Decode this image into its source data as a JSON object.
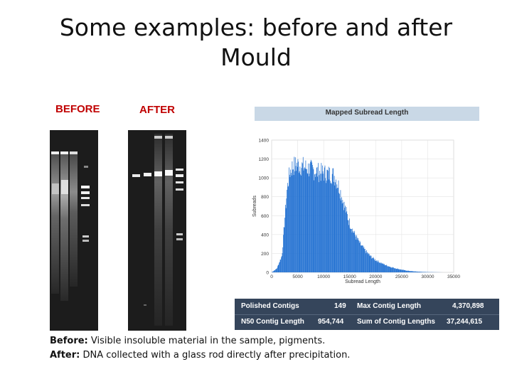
{
  "title_line1": "Some examples: before and after",
  "title_line2": "Mould",
  "labels": {
    "before": "BEFORE",
    "after": "AFTER"
  },
  "colors": {
    "label_red": "#c00000",
    "bar_blue": "#1f6fd1",
    "table_bg": "#35455b",
    "header_bg": "#c9d8e6"
  },
  "chart_data": {
    "type": "bar",
    "title": "Mapped Subread Length",
    "xlabel": "Subread Length",
    "ylabel": "Subreads",
    "xlim": [
      0,
      35000
    ],
    "ylim": [
      0,
      1400
    ],
    "xticks": [
      "0",
      "5000",
      "10000",
      "15000",
      "20000",
      "25000",
      "30000",
      "35000"
    ],
    "yticks": [
      "0",
      "200",
      "400",
      "600",
      "800",
      "1000",
      "1200",
      "1400"
    ],
    "bin_width": 100,
    "profile": [
      [
        0,
        0
      ],
      [
        1000,
        40
      ],
      [
        2000,
        180
      ],
      [
        2500,
        550
      ],
      [
        3000,
        900
      ],
      [
        3500,
        1060
      ],
      [
        4000,
        1120
      ],
      [
        5000,
        1140
      ],
      [
        6000,
        1120
      ],
      [
        7000,
        1100
      ],
      [
        8000,
        1080
      ],
      [
        9000,
        1060
      ],
      [
        10000,
        1050
      ],
      [
        11000,
        1040
      ],
      [
        12000,
        1030
      ],
      [
        13000,
        900
      ],
      [
        14000,
        700
      ],
      [
        15000,
        520
      ],
      [
        16000,
        400
      ],
      [
        17000,
        300
      ],
      [
        18000,
        230
      ],
      [
        19000,
        170
      ],
      [
        20000,
        130
      ],
      [
        21000,
        100
      ],
      [
        22000,
        75
      ],
      [
        23000,
        55
      ],
      [
        24000,
        40
      ],
      [
        25000,
        28
      ],
      [
        26000,
        18
      ],
      [
        27000,
        12
      ],
      [
        28000,
        8
      ],
      [
        29000,
        5
      ],
      [
        30000,
        3
      ],
      [
        31000,
        2
      ],
      [
        32000,
        1
      ],
      [
        33000,
        0
      ],
      [
        35000,
        0
      ]
    ]
  },
  "stats": {
    "row1": {
      "label1": "Polished Contigs",
      "value1": "149",
      "label2": "Max Contig Length",
      "value2": "4,370,898"
    },
    "row2": {
      "label1": "N50 Contig Length",
      "value1": "954,744",
      "label2": "Sum of Contig Lengths",
      "value2": "37,244,615"
    }
  },
  "caption": {
    "before_label": "Before:",
    "before_text": " Visible insoluble material in the sample, pigments.",
    "after_label": "After:",
    "after_text": "  DNA collected with a glass rod directly after precipitation."
  }
}
